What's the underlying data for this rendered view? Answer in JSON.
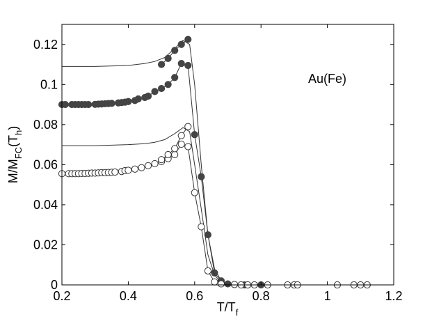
{
  "chart_data": {
    "type": "line",
    "title": "",
    "annotation": "Au(Fe)",
    "xlabel": {
      "main": "T/T",
      "sub": "f"
    },
    "ylabel": {
      "main": "M/M",
      "sub1": "FC",
      "mid": "(T",
      "sub2": "h",
      "end": ")"
    },
    "xlim": [
      0.2,
      1.2
    ],
    "ylim": [
      0,
      0.13
    ],
    "xticks": [
      0.2,
      0.4,
      0.6,
      0.8,
      1,
      1.2
    ],
    "xtick_labels": [
      "0.2",
      "0.4",
      "0.6",
      "0.8",
      "1",
      "1.2"
    ],
    "yticks": [
      0,
      0.02,
      0.04,
      0.06,
      0.08,
      0.1,
      0.12
    ],
    "ytick_labels": [
      "0",
      "0.02",
      "0.04",
      "0.06",
      "0.08",
      "0.1",
      "0.12"
    ],
    "grid": false,
    "colors": {
      "line": "#333333",
      "filled_marker": "#444444",
      "open_marker_fill": "#ffffff"
    },
    "series": [
      {
        "marker": "none",
        "x": [
          0.2,
          0.3,
          0.4,
          0.45,
          0.48,
          0.51,
          0.54,
          0.565,
          0.585,
          0.6,
          0.62,
          0.64,
          0.66,
          0.68,
          0.7
        ],
        "y": [
          0.109,
          0.109,
          0.1095,
          0.1105,
          0.1115,
          0.1135,
          0.118,
          0.122,
          0.12,
          0.1,
          0.06,
          0.025,
          0.008,
          0.002,
          0.0005
        ]
      },
      {
        "marker": "filled",
        "x": [
          0.2,
          0.21,
          0.23,
          0.24,
          0.25,
          0.26,
          0.27,
          0.28,
          0.3,
          0.31,
          0.32,
          0.33,
          0.34,
          0.35,
          0.37,
          0.38,
          0.39,
          0.4,
          0.42,
          0.43,
          0.45,
          0.46,
          0.48,
          0.5,
          0.52,
          0.54,
          0.56,
          0.58,
          0.6,
          0.62,
          0.64,
          0.66,
          0.68,
          0.7,
          0.72,
          0.75,
          0.8
        ],
        "y": [
          0.09,
          0.09,
          0.09,
          0.09,
          0.09,
          0.09,
          0.09,
          0.09,
          0.0901,
          0.0902,
          0.0903,
          0.0904,
          0.0905,
          0.0906,
          0.0908,
          0.091,
          0.0912,
          0.0915,
          0.092,
          0.0928,
          0.0935,
          0.0942,
          0.0965,
          0.098,
          0.1,
          0.1035,
          0.1105,
          0.1095,
          0.075,
          0.054,
          0.025,
          0.006,
          0.002,
          0.0005,
          0.0002,
          0,
          0
        ]
      },
      {
        "marker": "filled",
        "x": [
          0.5,
          0.52,
          0.54,
          0.56,
          0.58
        ],
        "y": [
          0.11,
          0.113,
          0.117,
          0.12,
          0.1225
        ]
      },
      {
        "marker": "none",
        "x": [
          0.2,
          0.3,
          0.4,
          0.45,
          0.48,
          0.51,
          0.54,
          0.565,
          0.585,
          0.6,
          0.62,
          0.64,
          0.66,
          0.68,
          0.7
        ],
        "y": [
          0.0695,
          0.0695,
          0.07,
          0.0705,
          0.0712,
          0.0725,
          0.0755,
          0.0785,
          0.0765,
          0.06,
          0.038,
          0.015,
          0.005,
          0.001,
          0.0003
        ]
      },
      {
        "marker": "open",
        "x": [
          0.2,
          0.22,
          0.23,
          0.24,
          0.25,
          0.26,
          0.27,
          0.28,
          0.29,
          0.3,
          0.31,
          0.32,
          0.33,
          0.34,
          0.35,
          0.36,
          0.38,
          0.39,
          0.4,
          0.42,
          0.44,
          0.46,
          0.48,
          0.5,
          0.52,
          0.54,
          0.56,
          0.58,
          0.6,
          0.62,
          0.64,
          0.66,
          0.68,
          0.72,
          0.74,
          0.76,
          0.78,
          0.82,
          0.88,
          0.9,
          0.91,
          1.03,
          1.08,
          1.1,
          1.12
        ],
        "y": [
          0.0555,
          0.0555,
          0.0555,
          0.0555,
          0.0555,
          0.0556,
          0.0556,
          0.0557,
          0.0558,
          0.0558,
          0.0559,
          0.056,
          0.056,
          0.0561,
          0.0562,
          0.0563,
          0.0566,
          0.057,
          0.0572,
          0.0578,
          0.0585,
          0.0595,
          0.0605,
          0.0615,
          0.063,
          0.065,
          0.0702,
          0.069,
          0.046,
          0.029,
          0.007,
          0.0015,
          0.0005,
          0.0002,
          0,
          0,
          0,
          0,
          0,
          0,
          0,
          0,
          0,
          0,
          0
        ]
      },
      {
        "marker": "open",
        "x": [
          0.5,
          0.52,
          0.54,
          0.56,
          0.58
        ],
        "y": [
          0.0625,
          0.065,
          0.068,
          0.0745,
          0.079
        ]
      }
    ]
  }
}
